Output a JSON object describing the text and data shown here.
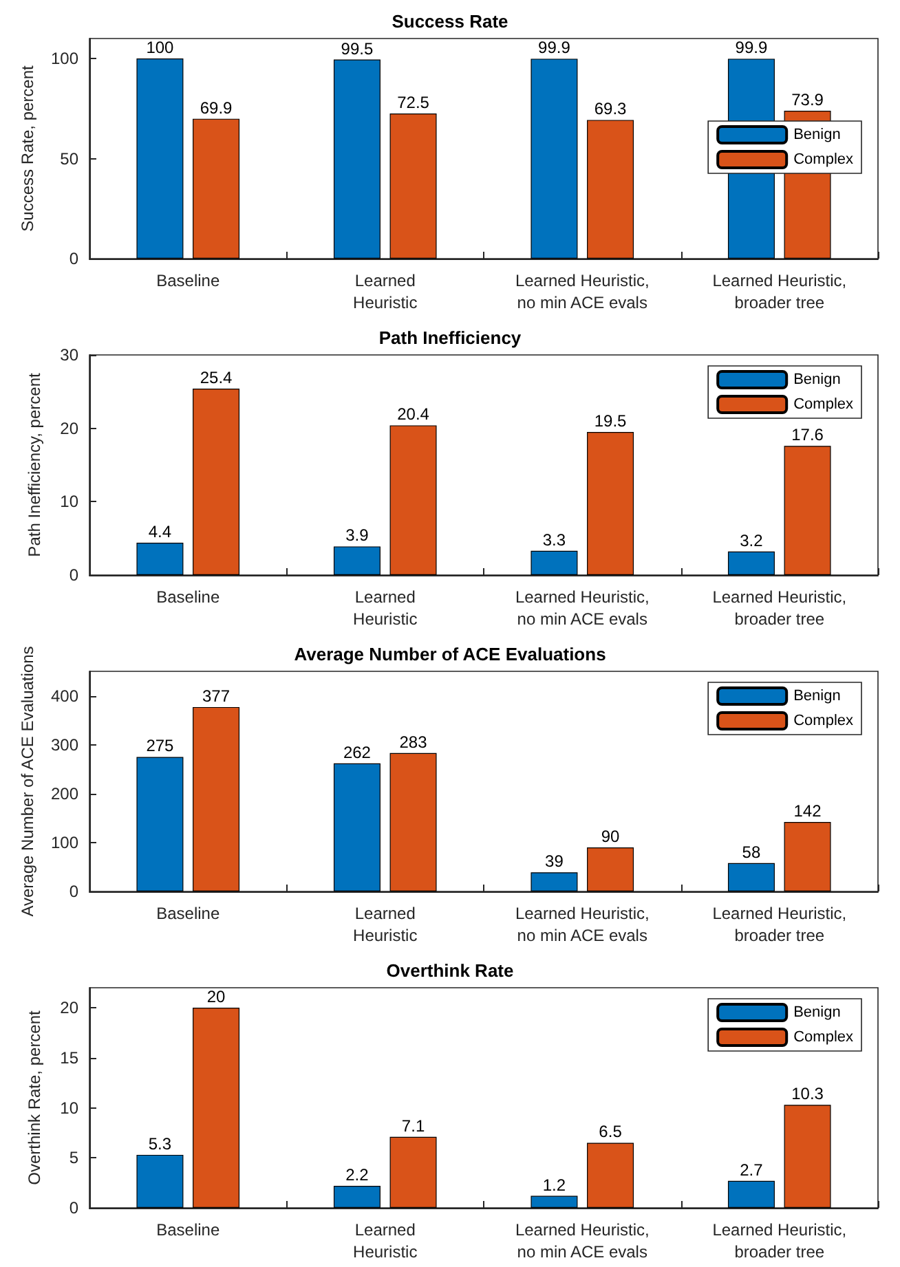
{
  "chart_data": [
    {
      "type": "bar",
      "title": "Success Rate",
      "ylabel": "Success Rate, percent",
      "categories": [
        "Baseline",
        "Learned\nHeuristic",
        "Learned Heuristic,\nno min ACE evals",
        "Learned Heuristic,\nbroader tree"
      ],
      "series": [
        {
          "name": "Benign",
          "color": "#0072bd",
          "values": [
            100,
            99.5,
            99.9,
            99.9
          ]
        },
        {
          "name": "Complex",
          "color": "#d95319",
          "values": [
            69.9,
            72.5,
            69.3,
            73.9
          ]
        }
      ],
      "ylim": [
        0,
        110
      ],
      "yticks": [
        0,
        50,
        100
      ],
      "data_labels": true,
      "legend": "right",
      "grid": false
    },
    {
      "type": "bar",
      "title": "Path Inefficiency",
      "ylabel": "Path Inefficiency, percent",
      "categories": [
        "Baseline",
        "Learned\nHeuristic",
        "Learned Heuristic,\nno min ACE evals",
        "Learned Heuristic,\nbroader tree"
      ],
      "series": [
        {
          "name": "Benign",
          "color": "#0072bd",
          "values": [
            4.4,
            3.9,
            3.3,
            3.2
          ]
        },
        {
          "name": "Complex",
          "color": "#d95319",
          "values": [
            25.4,
            20.4,
            19.5,
            17.6
          ]
        }
      ],
      "ylim": [
        0,
        30
      ],
      "yticks": [
        0,
        10,
        20,
        30
      ],
      "data_labels": true,
      "legend": "top right",
      "grid": false
    },
    {
      "type": "bar",
      "title": "Average Number of ACE Evaluations",
      "ylabel": "Average Number of ACE Evaluations",
      "categories": [
        "Baseline",
        "Learned\nHeuristic",
        "Learned Heuristic,\nno min ACE evals",
        "Learned Heuristic,\nbroader tree"
      ],
      "series": [
        {
          "name": "Benign",
          "color": "#0072bd",
          "values": [
            275,
            262,
            39,
            58
          ]
        },
        {
          "name": "Complex",
          "color": "#d95319",
          "values": [
            377,
            283,
            90,
            142
          ]
        }
      ],
      "ylim": [
        0,
        450
      ],
      "yticks": [
        0,
        100,
        200,
        300,
        400
      ],
      "data_labels": true,
      "legend": "top right",
      "grid": false
    },
    {
      "type": "bar",
      "title": "Overthink Rate",
      "ylabel": "Overthink Rate, percent",
      "categories": [
        "Baseline",
        "Learned\nHeuristic",
        "Learned Heuristic,\nno min ACE evals",
        "Learned Heuristic,\nbroader tree"
      ],
      "series": [
        {
          "name": "Benign",
          "color": "#0072bd",
          "values": [
            5.3,
            2.2,
            1.2,
            2.7
          ]
        },
        {
          "name": "Complex",
          "color": "#d95319",
          "values": [
            20,
            7.1,
            6.5,
            10.3
          ]
        }
      ],
      "ylim": [
        0,
        22
      ],
      "yticks": [
        0,
        5,
        10,
        15,
        20
      ],
      "data_labels": true,
      "legend": "top right",
      "grid": false
    }
  ]
}
